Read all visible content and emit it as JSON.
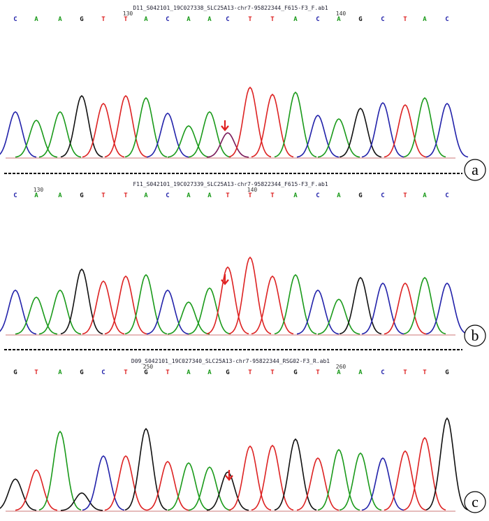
{
  "panels": [
    {
      "label": "a",
      "title": "D11_S042101_19C027338_SLC25A13-chr7-95822344_F615-F3_F.ab1",
      "bases": [
        "C",
        "A",
        "A",
        "G",
        "T",
        "T",
        "A",
        "C",
        "A",
        "A",
        "C",
        "T",
        "T",
        "A",
        "C",
        "A",
        "G",
        "C",
        "T",
        "A",
        "C"
      ],
      "ruler": [
        null,
        null,
        null,
        null,
        null,
        "130",
        null,
        null,
        null,
        null,
        null,
        null,
        null,
        null,
        null,
        "140",
        null,
        null,
        null,
        null,
        null
      ]
    },
    {
      "label": "b",
      "title": "F11_S042101_19C027339_SLC25A13-chr7-95822344_F615-F3_F.ab1",
      "bases": [
        "C",
        "A",
        "A",
        "G",
        "T",
        "T",
        "A",
        "C",
        "A",
        "A",
        "T",
        "T",
        "T",
        "A",
        "C",
        "A",
        "G",
        "C",
        "T",
        "A",
        "C"
      ],
      "ruler": [
        null,
        "130",
        null,
        null,
        null,
        null,
        null,
        null,
        null,
        null,
        null,
        "140",
        null,
        null,
        null,
        null,
        null,
        null,
        null,
        null,
        null
      ]
    },
    {
      "label": "c",
      "title": "D09_S042101_19C027340_SLC25A13-chr7-95822344_RSG02-F3_R.ab1",
      "bases": [
        "G",
        "T",
        "A",
        "G",
        "C",
        "T",
        "G",
        "T",
        "A",
        "A",
        "G",
        "T",
        "T",
        "G",
        "T",
        "A",
        "A",
        "C",
        "T",
        "T",
        "G"
      ],
      "ruler": [
        null,
        null,
        null,
        null,
        null,
        null,
        "250",
        null,
        null,
        null,
        null,
        null,
        null,
        null,
        null,
        "260",
        null,
        null,
        null,
        null,
        null
      ]
    }
  ]
}
